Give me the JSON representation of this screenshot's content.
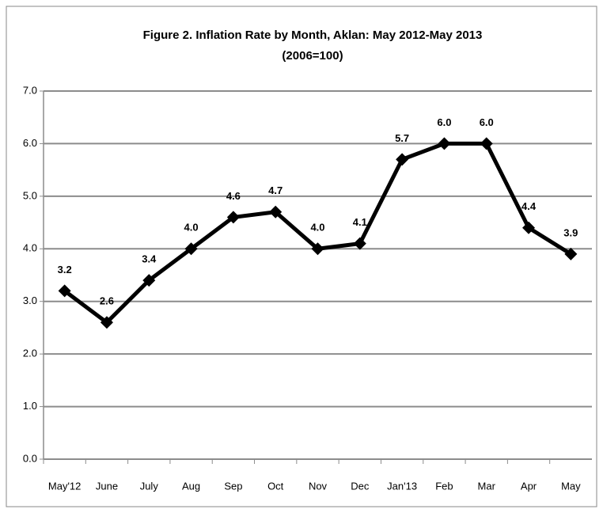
{
  "chart_data": {
    "type": "line",
    "title": "Figure 2. Inflation Rate by Month, Aklan: May 2012-May 2013",
    "subtitle": "(2006=100)",
    "categories": [
      "May'12",
      "June",
      "July",
      "Aug",
      "Sep",
      "Oct",
      "Nov",
      "Dec",
      "Jan'13",
      "Feb",
      "Mar",
      "Apr",
      "May"
    ],
    "series": [
      {
        "name": "Inflation Rate",
        "color": "#000000",
        "values": [
          3.2,
          2.6,
          3.4,
          4.0,
          4.6,
          4.7,
          4.0,
          4.1,
          5.7,
          6.0,
          6.0,
          4.4,
          3.9
        ],
        "value_labels": [
          "3.2",
          "2.6",
          "3.4",
          "4.0",
          "4.6",
          "4.7",
          "4.0",
          "4.1",
          "5.7",
          "6.0",
          "6.0",
          "4.4",
          "3.9"
        ]
      }
    ],
    "ylim": [
      0,
      7
    ],
    "yticks": [
      {
        "value": 0,
        "label": "0.0"
      },
      {
        "value": 1,
        "label": "1.0"
      },
      {
        "value": 2,
        "label": "2.0"
      },
      {
        "value": 3,
        "label": "3.0"
      },
      {
        "value": 4,
        "label": "4.0"
      },
      {
        "value": 5,
        "label": "5.0"
      },
      {
        "value": 6,
        "label": "6.0"
      },
      {
        "value": 7,
        "label": "7.0"
      }
    ],
    "grid": true
  }
}
